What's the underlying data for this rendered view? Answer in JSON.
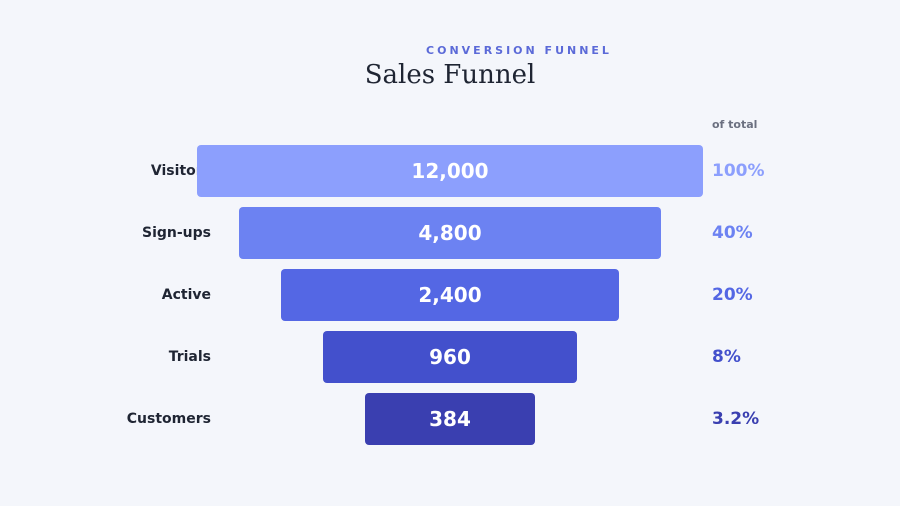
{
  "header": {
    "subtitle": "CONVERSION FUNNEL",
    "title": "Sales Funnel"
  },
  "column_header": "of total",
  "chart_data": {
    "type": "funnel",
    "title": "Sales Funnel",
    "subtitle": "CONVERSION FUNNEL",
    "categories": [
      "Visitors",
      "Sign-ups",
      "Active",
      "Trials",
      "Customers"
    ],
    "values": [
      12000,
      4800,
      2400,
      960,
      384
    ],
    "value_labels": [
      "12,000",
      "4,800",
      "2,400",
      "960",
      "384"
    ],
    "percent_labels": [
      "100%",
      "40%",
      "20%",
      "8%",
      "3.2%"
    ],
    "colors": [
      "#8c9ffd",
      "#6c82f2",
      "#5467e4",
      "#4350cc",
      "#3a3fb0"
    ],
    "percent_colors": [
      "#8c9ffd",
      "#6c82f2",
      "#5467e4",
      "#4350cc",
      "#3a3fb0"
    ]
  }
}
